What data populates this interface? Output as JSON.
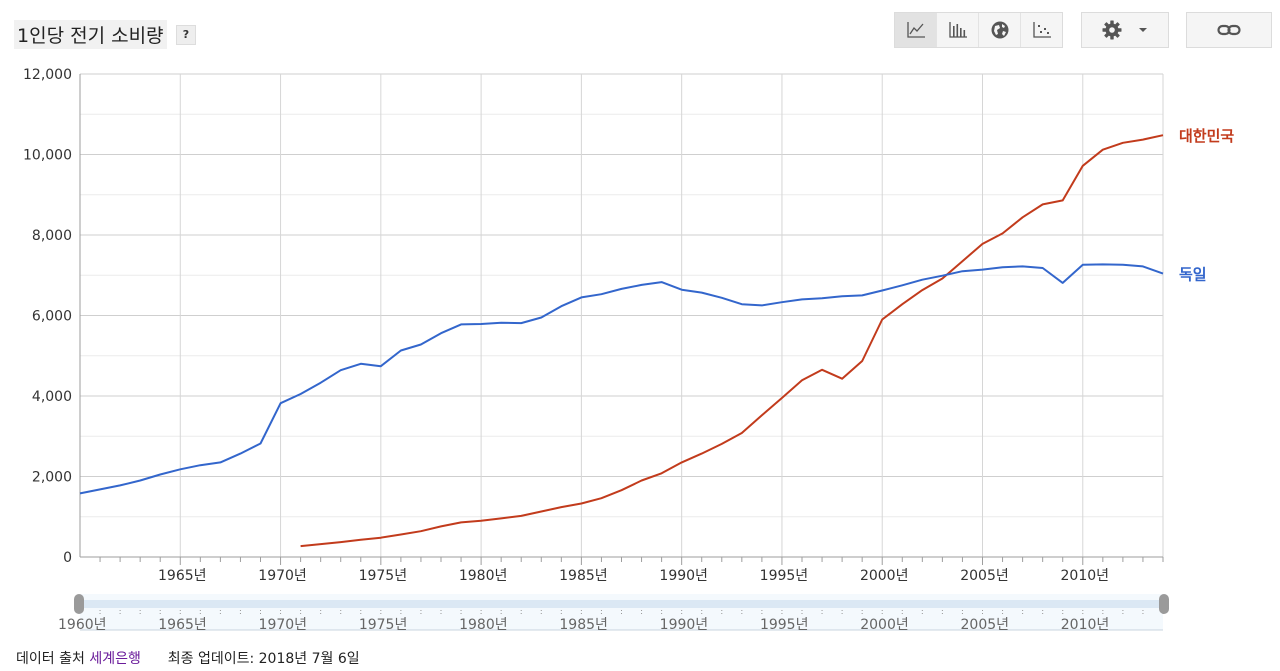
{
  "header": {
    "title": "1인당 전기 소비량",
    "help_label": "?"
  },
  "toolbar": {
    "view_icons": [
      "line-chart-icon",
      "bar-chart-icon",
      "globe-icon",
      "scatter-icon"
    ],
    "active_view": "line-chart-icon",
    "settings_icon": "gear-icon",
    "link_icon": "link-icon"
  },
  "footer": {
    "source_prefix": "데이터 출처",
    "source_link": "세계은행",
    "updated": "최종 업데이트: 2018년 7월 6일"
  },
  "colors": {
    "korea": "#c23b1c",
    "germany": "#3366cc",
    "link": "#6a1b9a"
  },
  "chart_data": {
    "type": "line",
    "title": "1인당 전기 소비량",
    "xlim": [
      1960,
      2014
    ],
    "ylim": [
      0,
      12000
    ],
    "y_ticks": [
      0,
      2000,
      4000,
      6000,
      8000,
      10000,
      12000
    ],
    "y_tick_labels": [
      "0",
      "2,000",
      "4,000",
      "6,000",
      "8,000",
      "10,000",
      "12,000"
    ],
    "x_ticks": [
      1965,
      1970,
      1975,
      1980,
      1985,
      1990,
      1995,
      2000,
      2005,
      2010
    ],
    "x_tick_labels": [
      "1965년",
      "1970년",
      "1975년",
      "1980년",
      "1985년",
      "1990년",
      "1995년",
      "2000년",
      "2005년",
      "2010년"
    ],
    "range_tick_labels": [
      "1960년",
      "1965년",
      "1970년",
      "1975년",
      "1980년",
      "1985년",
      "1990년",
      "1995년",
      "2000년",
      "2005년",
      "2010년"
    ],
    "grid": true,
    "legend": "right-end labels",
    "series": [
      {
        "name": "대한민국",
        "color": "#c23b1c",
        "x": [
          1971,
          1972,
          1973,
          1974,
          1975,
          1976,
          1977,
          1978,
          1979,
          1980,
          1981,
          1982,
          1983,
          1984,
          1985,
          1986,
          1987,
          1988,
          1989,
          1990,
          1991,
          1992,
          1993,
          1994,
          1995,
          1996,
          1997,
          1998,
          1999,
          2000,
          2001,
          2002,
          2003,
          2004,
          2005,
          2006,
          2007,
          2008,
          2009,
          2010,
          2011,
          2012,
          2013,
          2014
        ],
        "values": [
          270,
          320,
          370,
          430,
          480,
          560,
          640,
          760,
          860,
          900,
          960,
          1020,
          1130,
          1240,
          1330,
          1460,
          1660,
          1900,
          2080,
          2350,
          2570,
          2810,
          3080,
          3520,
          3950,
          4390,
          4650,
          4430,
          4870,
          5900,
          6280,
          6630,
          6920,
          7350,
          7780,
          8040,
          8440,
          8760,
          8860,
          9720,
          10120,
          10290,
          10370,
          10480
        ]
      },
      {
        "name": "독일",
        "color": "#3366cc",
        "x": [
          1960,
          1961,
          1962,
          1963,
          1964,
          1965,
          1966,
          1967,
          1968,
          1969,
          1970,
          1971,
          1972,
          1973,
          1974,
          1975,
          1976,
          1977,
          1978,
          1979,
          1980,
          1981,
          1982,
          1983,
          1984,
          1985,
          1986,
          1987,
          1988,
          1989,
          1990,
          1991,
          1992,
          1993,
          1994,
          1995,
          1996,
          1997,
          1998,
          1999,
          2000,
          2001,
          2002,
          2003,
          2004,
          2005,
          2006,
          2007,
          2008,
          2009,
          2010,
          2011,
          2012,
          2013,
          2014
        ],
        "values": [
          1580,
          1680,
          1780,
          1900,
          2050,
          2180,
          2280,
          2350,
          2570,
          2820,
          3820,
          4050,
          4330,
          4640,
          4800,
          4740,
          5130,
          5280,
          5560,
          5780,
          5790,
          5820,
          5810,
          5950,
          6230,
          6450,
          6530,
          6660,
          6760,
          6830,
          6640,
          6570,
          6440,
          6280,
          6250,
          6330,
          6400,
          6430,
          6480,
          6500,
          6620,
          6750,
          6890,
          6990,
          7100,
          7140,
          7200,
          7220,
          7180,
          6810,
          7260,
          7270,
          7260,
          7220,
          7040
        ]
      }
    ]
  }
}
